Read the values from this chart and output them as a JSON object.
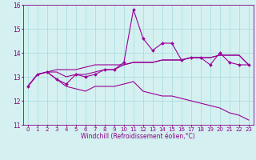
{
  "x": [
    0,
    1,
    2,
    3,
    4,
    5,
    6,
    7,
    8,
    9,
    10,
    11,
    12,
    13,
    14,
    15,
    16,
    17,
    18,
    19,
    20,
    21,
    22,
    23
  ],
  "line1": [
    12.6,
    13.1,
    13.2,
    12.9,
    12.7,
    13.1,
    13.0,
    13.1,
    13.3,
    13.3,
    13.6,
    15.8,
    14.6,
    14.1,
    14.4,
    14.4,
    13.7,
    13.8,
    13.8,
    13.5,
    14.0,
    13.6,
    13.5,
    13.5
  ],
  "line2": [
    12.6,
    13.1,
    13.2,
    13.3,
    13.3,
    13.3,
    13.4,
    13.5,
    13.5,
    13.5,
    13.5,
    13.6,
    13.6,
    13.6,
    13.7,
    13.7,
    13.7,
    13.8,
    13.8,
    13.8,
    13.9,
    13.9,
    13.9,
    13.5
  ],
  "line3": [
    12.6,
    13.1,
    13.2,
    13.2,
    13.0,
    13.1,
    13.1,
    13.2,
    13.3,
    13.3,
    13.5,
    13.6,
    13.6,
    13.6,
    13.7,
    13.7,
    13.7,
    13.8,
    13.8,
    13.8,
    13.9,
    13.9,
    13.9,
    13.5
  ],
  "line4": [
    12.6,
    13.1,
    13.2,
    12.9,
    12.6,
    12.5,
    12.4,
    12.6,
    12.6,
    12.6,
    12.7,
    12.8,
    12.4,
    12.3,
    12.2,
    12.2,
    12.1,
    12.0,
    11.9,
    11.8,
    11.7,
    11.5,
    11.4,
    11.2
  ],
  "line_color": "#990099",
  "bg_color": "#d5f0f0",
  "grid_color": "#aadddd",
  "xlabel": "Windchill (Refroidissement éolien,°C)",
  "ylim": [
    11,
    16
  ],
  "xlim": [
    -0.5,
    23.5
  ],
  "yticks": [
    11,
    12,
    13,
    14,
    15,
    16
  ],
  "xticks": [
    0,
    1,
    2,
    3,
    4,
    5,
    6,
    7,
    8,
    9,
    10,
    11,
    12,
    13,
    14,
    15,
    16,
    17,
    18,
    19,
    20,
    21,
    22,
    23
  ],
  "tick_fontsize": 5,
  "label_fontsize": 5.5,
  "tick_color": "#880088",
  "spine_color": "#880088",
  "lw": 0.8,
  "marker_size": 2.0
}
